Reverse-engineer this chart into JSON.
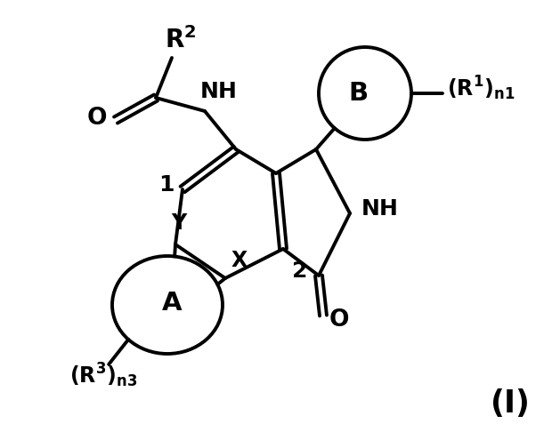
{
  "background_color": "#ffffff",
  "line_color": "#000000",
  "line_width": 2.8,
  "fig_width": 6.2,
  "fig_height": 4.95,
  "dpi": 100,
  "font_size_label": 17,
  "font_size_sub": 14
}
